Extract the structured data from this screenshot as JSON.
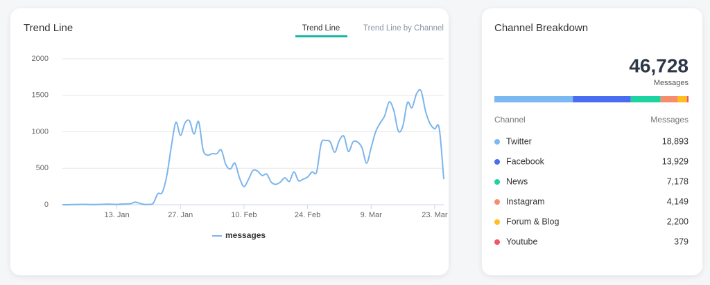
{
  "tabs": [
    "Trend Line",
    "Trend Line by Channel"
  ],
  "chart_data": [
    {
      "type": "line",
      "title": "Trend Line",
      "x": [
        1,
        2,
        3,
        4,
        5,
        6,
        7,
        8,
        9,
        10,
        11,
        12,
        13,
        14,
        15,
        16,
        17,
        18,
        19,
        20,
        21,
        22,
        23,
        24,
        25,
        26,
        27,
        28,
        29,
        30,
        31,
        32,
        33,
        34,
        35,
        36,
        37,
        38,
        39,
        40,
        41,
        42,
        43,
        44,
        45,
        46,
        47,
        48,
        49,
        50,
        51,
        52,
        53,
        54,
        55,
        56,
        57,
        58,
        59,
        60,
        61,
        62,
        63,
        64,
        65,
        66,
        67,
        68,
        69,
        70,
        71,
        72,
        73,
        74,
        75,
        76,
        77,
        78,
        79,
        80,
        81,
        82,
        83,
        84,
        85
      ],
      "xlim": [
        1,
        85
      ],
      "xticks": [
        {
          "value": 13,
          "label": "13. Jan"
        },
        {
          "value": 27,
          "label": "27. Jan"
        },
        {
          "value": 41,
          "label": "10. Feb"
        },
        {
          "value": 55,
          "label": "24. Feb"
        },
        {
          "value": 69,
          "label": "9. Mar"
        },
        {
          "value": 83,
          "label": "23. Mar"
        }
      ],
      "ylim": [
        0,
        2000
      ],
      "yticks": [
        0,
        500,
        1000,
        1500,
        2000
      ],
      "grid": true,
      "series": [
        {
          "name": "messages",
          "color": "#7cb5ec",
          "values": [
            0,
            0,
            2,
            3,
            5,
            5,
            3,
            2,
            4,
            6,
            8,
            6,
            5,
            10,
            12,
            15,
            35,
            20,
            5,
            5,
            20,
            150,
            170,
            400,
            800,
            1130,
            950,
            1120,
            1150,
            970,
            1140,
            750,
            680,
            700,
            700,
            750,
            550,
            490,
            570,
            370,
            250,
            350,
            470,
            460,
            400,
            420,
            310,
            280,
            310,
            370,
            320,
            450,
            330,
            350,
            380,
            450,
            450,
            840,
            880,
            860,
            720,
            880,
            940,
            730,
            860,
            860,
            780,
            570,
            780,
            1000,
            1120,
            1220,
            1410,
            1290,
            1010,
            1080,
            1400,
            1330,
            1520,
            1560,
            1280,
            1110,
            1040,
            1050,
            350
          ]
        }
      ]
    },
    {
      "type": "stacked-bar",
      "title": "Channel Breakdown",
      "total": {
        "value": 46728,
        "label": "46,728"
      },
      "total_caption": "Messages",
      "columns": [
        "Channel",
        "Messages"
      ],
      "categories": [
        "Twitter",
        "Facebook",
        "News",
        "Instagram",
        "Forum & Blog",
        "Youtube"
      ],
      "values": [
        18893,
        13929,
        7178,
        4149,
        2200,
        379
      ],
      "value_labels": [
        "18,893",
        "13,929",
        "7,178",
        "4,149",
        "2,200",
        "379"
      ],
      "colors": [
        "#7cb8f2",
        "#4a6cf0",
        "#1dd3a0",
        "#f78e6b",
        "#ffbf1f",
        "#f0566a"
      ]
    }
  ]
}
